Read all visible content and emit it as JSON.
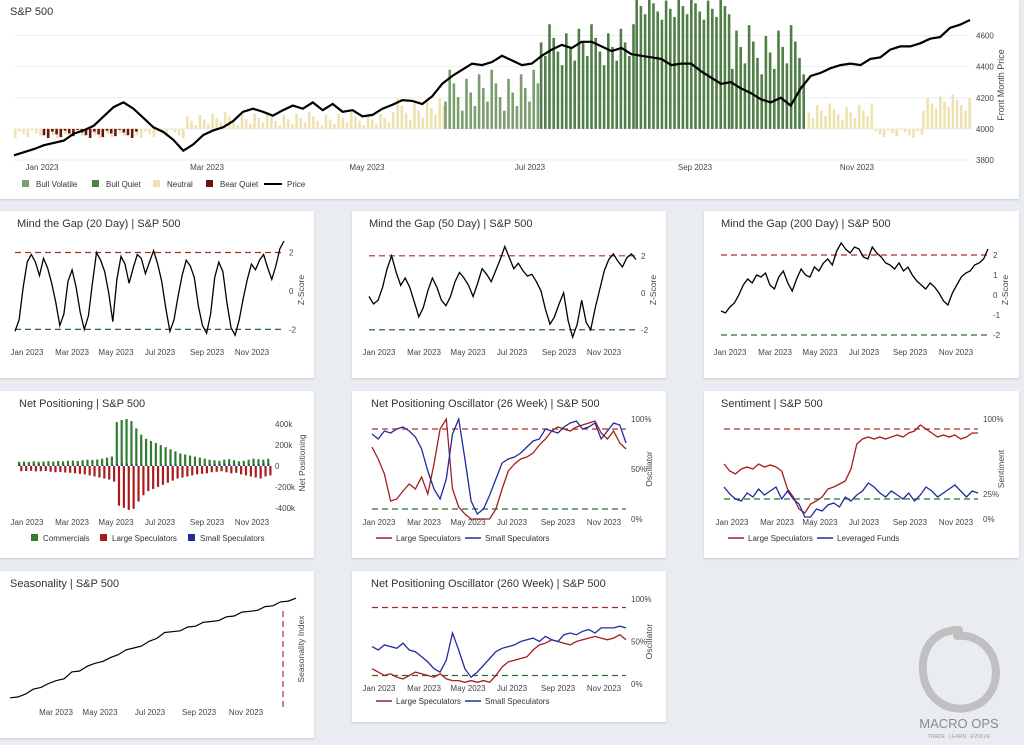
{
  "brand": {
    "name": "MACRO OPS",
    "tagline": "TRADE · LEARN · EVOLVE"
  },
  "colors": {
    "price": "#000000",
    "bull_volatile": "#7a9e6e",
    "bull_quiet": "#4f7f46",
    "neutral": "#ede2b0",
    "bear_quiet": "#6b1414",
    "red_dash": "#b12a2a",
    "green_dash": "#2e6b2e",
    "large_spec": "#a71d1d",
    "small_spec": "#1f2d9c",
    "commercials": "#2e7d32",
    "leveraged": "#1f2d9c"
  },
  "charts": {
    "sp500": {
      "title": "S&P 500"
    },
    "gap20": {
      "title": "Mind the Gap (20 Day) | S&P 500"
    },
    "gap50": {
      "title": "Mind the Gap (50 Day) | S&P 500"
    },
    "gap200": {
      "title": "Mind the Gap (200 Day) | S&P 500"
    },
    "netpos": {
      "title": "Net Positioning | S&P 500"
    },
    "osc26": {
      "title": "Net Positioning Oscillator (26 Week) | S&P 500"
    },
    "sentiment": {
      "title": "Sentiment | S&P 500"
    },
    "seasonality": {
      "title": "Seasonality | S&P 500"
    },
    "osc260": {
      "title": "Net Positioning Oscillator (260 Week) | S&P 500"
    }
  },
  "chart_data": [
    {
      "id": "sp500",
      "type": "bar+line",
      "title": "S&P 500",
      "ylabel": "Front Month Price",
      "ylim": [
        3800,
        4700
      ],
      "yticks": [
        3800,
        4000,
        4200,
        4400,
        4600
      ],
      "xticks": [
        "Jan 2023",
        "Mar 2023",
        "May 2023",
        "Jul 2023",
        "Sep 2023",
        "Nov 2023"
      ],
      "legend": [
        "Bull Volatile",
        "Bull Quiet",
        "Neutral",
        "Bear Quiet",
        "Price"
      ],
      "price": [
        3830,
        3850,
        3870,
        3895,
        3910,
        3925,
        3970,
        3990,
        4020,
        4080,
        4140,
        4170,
        4130,
        4070,
        4010,
        3980,
        3930,
        3860,
        3900,
        3960,
        3990,
        4010,
        4050,
        4110,
        4130,
        4110,
        4085,
        4120,
        4150,
        4130,
        4170,
        4120,
        4160,
        4110,
        4120,
        4080,
        4090,
        4130,
        4155,
        4185,
        4180,
        4160,
        4210,
        4290,
        4340,
        4380,
        4420,
        4410,
        4430,
        4470,
        4440,
        4410,
        4420,
        4470,
        4510,
        4540,
        4520,
        4560,
        4560,
        4530,
        4500,
        4520,
        4480,
        4470,
        4460,
        4450,
        4410,
        4420,
        4420,
        4370,
        4330,
        4290,
        4300,
        4260,
        4230,
        4190,
        4170,
        4200,
        4150,
        4260,
        4340,
        4360,
        4390,
        4410,
        4420,
        4410,
        4450,
        4460,
        4510,
        4530,
        4530,
        4550,
        4580,
        4590,
        4650,
        4670,
        4700
      ],
      "regime": [
        {
          "x0": 0,
          "x1": 18,
          "cat": "neutral",
          "lo": -0.05,
          "hi": 0.0
        },
        {
          "x0": 3,
          "x1": 13,
          "cat": "bear_quiet",
          "lo": -0.05,
          "hi": 0.0
        },
        {
          "x0": 18,
          "x1": 40,
          "cat": "neutral",
          "lo": 0.02,
          "hi": 0.1
        },
        {
          "x0": 40,
          "x1": 45,
          "cat": "neutral",
          "lo": 0.05,
          "hi": 0.18
        },
        {
          "x0": 45,
          "x1": 55,
          "cat": "bull_volatile",
          "lo": 0.1,
          "hi": 0.35
        },
        {
          "x0": 55,
          "x1": 65,
          "cat": "bull_quiet",
          "lo": 0.35,
          "hi": 0.6
        },
        {
          "x0": 65,
          "x1": 75,
          "cat": "bull_quiet",
          "lo": 0.6,
          "hi": 0.75
        },
        {
          "x0": 75,
          "x1": 83,
          "cat": "bull_quiet",
          "lo": 0.3,
          "hi": 0.6
        },
        {
          "x0": 83,
          "x1": 90,
          "cat": "neutral",
          "lo": 0.05,
          "hi": 0.15
        },
        {
          "x0": 90,
          "x1": 95,
          "cat": "neutral",
          "lo": -0.05,
          "hi": 0.0
        },
        {
          "x0": 95,
          "x1": 100,
          "cat": "neutral",
          "lo": 0.1,
          "hi": 0.2
        }
      ]
    },
    {
      "id": "gap20",
      "type": "line",
      "ylabel": "Z-Score",
      "ylim": [
        -2.5,
        2.6
      ],
      "yticks": [
        -2,
        0,
        2
      ],
      "xticks": [
        "Jan 2023",
        "Mar 2023",
        "May 2023",
        "Jul 2023",
        "Sep 2023",
        "Nov 2023"
      ],
      "ref_lines": [
        2,
        -2
      ],
      "values": [
        -2.1,
        -1.5,
        0.2,
        1.5,
        1.9,
        1.5,
        0.8,
        1.7,
        1.2,
        0.4,
        -0.6,
        -1.8,
        -1.2,
        0.5,
        1.1,
        0.2,
        -1.1,
        -2.0,
        -1.3,
        0.4,
        2.0,
        1.6,
        1.0,
        -0.1,
        -1.6,
        0.6,
        1.8,
        1.4,
        0.4,
        1.2,
        1.9,
        1.7,
        0.9,
        1.5,
        2.1,
        1.4,
        0.5,
        -0.9,
        -2.1,
        -1.5,
        -0.3,
        0.8,
        1.6,
        1.3,
        0.7,
        -0.8,
        -1.8,
        -2.2,
        -1.2,
        0.7,
        1.5,
        1.0,
        -0.6,
        -1.9,
        -2.3,
        -1.5,
        -0.4,
        0.6,
        1.4,
        1.1,
        1.6,
        1.9,
        1.2,
        0.6,
        1.3,
        2.2,
        2.6
      ]
    },
    {
      "id": "gap50",
      "type": "line",
      "ylabel": "Z-Score",
      "ylim": [
        -2.5,
        2.8
      ],
      "yticks": [
        -2,
        0,
        2
      ],
      "xticks": [
        "Jan 2023",
        "Mar 2023",
        "May 2023",
        "Jul 2023",
        "Sep 2023",
        "Nov 2023"
      ],
      "ref_lines": [
        2,
        -2
      ],
      "values": [
        -0.2,
        -0.6,
        -0.4,
        0.3,
        1.3,
        2.0,
        1.1,
        0.4,
        0.8,
        0.3,
        -0.5,
        -1.3,
        -0.8,
        0.1,
        0.8,
        0.3,
        -0.4,
        -0.7,
        -0.2,
        0.6,
        1.1,
        0.8,
        0.4,
        -0.2,
        0.5,
        1.3,
        1.0,
        0.6,
        1.2,
        1.8,
        2.5,
        1.9,
        1.3,
        1.6,
        1.2,
        0.9,
        1.0,
        0.6,
        0.1,
        -0.9,
        -1.7,
        -1.3,
        -0.6,
        0.0,
        -1.5,
        -2.4,
        -1.7,
        -0.4,
        -1.6,
        -2.0,
        -0.8,
        0.2,
        1.2,
        1.8,
        2.1,
        1.7,
        1.4,
        1.9,
        2.1,
        1.8
      ]
    },
    {
      "id": "gap200",
      "type": "line",
      "ylabel": "Z-Score",
      "ylim": [
        -2.2,
        2.7
      ],
      "yticks": [
        -2,
        -1,
        0,
        1,
        2
      ],
      "xticks": [
        "Jan 2023",
        "Mar 2023",
        "May 2023",
        "Jul 2023",
        "Sep 2023",
        "Nov 2023"
      ],
      "ref_lines": [
        2,
        -2
      ],
      "values": [
        -0.8,
        -0.9,
        -0.6,
        -0.4,
        0.0,
        0.5,
        0.8,
        0.6,
        1.0,
        0.9,
        1.1,
        0.5,
        0.3,
        0.9,
        1.2,
        0.6,
        0.2,
        0.8,
        1.3,
        1.0,
        0.9,
        1.4,
        1.2,
        1.6,
        1.8,
        1.5,
        2.2,
        2.6,
        2.3,
        2.1,
        2.4,
        2.3,
        1.9,
        1.8,
        2.4,
        2.1,
        1.9,
        1.6,
        1.5,
        1.3,
        1.6,
        1.2,
        1.4,
        1.0,
        0.7,
        0.5,
        0.3,
        0.6,
        0.4,
        0.1,
        -0.3,
        -0.5,
        0.1,
        0.5,
        0.9,
        1.1,
        1.2,
        1.5,
        1.6,
        1.8,
        2.3
      ]
    },
    {
      "id": "netpos",
      "type": "bar",
      "ylabel": "Net Positioning",
      "ylim": [
        -450000,
        450000
      ],
      "yticks": [
        "400k",
        "200k",
        "0",
        "-200k",
        "-400k"
      ],
      "ytick_values": [
        400000,
        200000,
        0,
        -200000,
        -400000
      ],
      "xticks": [
        "Jan 2023",
        "Mar 2023",
        "May 2023",
        "Jul 2023",
        "Sep 2023",
        "Nov 2023"
      ],
      "legend": [
        "Commercials",
        "Large Speculators",
        "Small Speculators"
      ],
      "commercials": [
        40000,
        42000,
        38000,
        45000,
        40000,
        43000,
        46000,
        42000,
        48000,
        45000,
        50000,
        52000,
        48000,
        55000,
        60000,
        58000,
        62000,
        70000,
        80000,
        90000,
        420000,
        440000,
        450000,
        430000,
        360000,
        300000,
        260000,
        240000,
        220000,
        200000,
        180000,
        160000,
        140000,
        120000,
        110000,
        100000,
        90000,
        80000,
        70000,
        60000,
        55000,
        50000,
        60000,
        65000,
        55000,
        45000,
        50000,
        60000,
        70000,
        65000,
        60000,
        70000
      ],
      "large_spec": [
        -50000,
        -48000,
        -46000,
        -52000,
        -50000,
        -48000,
        -55000,
        -60000,
        -58000,
        -62000,
        -65000,
        -70000,
        -75000,
        -80000,
        -90000,
        -100000,
        -110000,
        -120000,
        -130000,
        -150000,
        -380000,
        -400000,
        -420000,
        -410000,
        -340000,
        -280000,
        -240000,
        -220000,
        -200000,
        -180000,
        -160000,
        -140000,
        -120000,
        -110000,
        -100000,
        -90000,
        -80000,
        -75000,
        -70000,
        -60000,
        -55000,
        -50000,
        -60000,
        -70000,
        -65000,
        -80000,
        -90000,
        -100000,
        -110000,
        -120000,
        -100000,
        -90000
      ],
      "small_spec": [
        15000,
        12000,
        10000,
        14000,
        16000,
        12000,
        10000,
        8000,
        12000,
        14000,
        10000,
        12000,
        15000,
        10000,
        8000,
        6000,
        10000,
        12000,
        14000,
        15000,
        20000,
        25000,
        20000,
        18000,
        15000,
        12000,
        10000,
        8000,
        6000,
        10000,
        12000,
        14000,
        16000,
        12000,
        10000,
        8000,
        6000,
        10000,
        12000,
        15000,
        18000,
        20000,
        22000,
        18000,
        15000,
        12000,
        10000,
        14000,
        16000,
        20000,
        25000,
        22000
      ]
    },
    {
      "id": "osc26",
      "type": "line",
      "ylabel": "Oscillator",
      "ylim": [
        0,
        100
      ],
      "yticks": [
        "0%",
        "50%",
        "100%"
      ],
      "ref_lines": [
        90,
        10
      ],
      "xticks": [
        "Jan 2023",
        "Mar 2023",
        "May 2023",
        "Jul 2023",
        "Sep 2023",
        "Nov 2023"
      ],
      "legend": [
        "Large Speculators",
        "Small Speculators"
      ],
      "series": [
        {
          "name": "Large Speculators",
          "values": [
            72,
            60,
            45,
            18,
            20,
            28,
            35,
            30,
            42,
            25,
            55,
            90,
            100,
            30,
            12,
            5,
            0,
            0,
            0,
            0,
            10,
            30,
            48,
            55,
            60,
            62,
            66,
            74,
            80,
            88,
            92,
            90,
            88,
            92,
            94,
            96,
            98,
            86,
            80,
            88,
            76,
            70
          ]
        },
        {
          "name": "Small Speculators",
          "values": [
            85,
            80,
            88,
            86,
            90,
            92,
            88,
            82,
            70,
            48,
            30,
            20,
            40,
            85,
            100,
            60,
            18,
            5,
            10,
            24,
            40,
            56,
            60,
            62,
            66,
            72,
            78,
            80,
            90,
            88,
            86,
            92,
            96,
            98,
            90,
            92,
            96,
            80,
            88,
            96,
            94,
            76
          ]
        }
      ]
    },
    {
      "id": "sentiment",
      "type": "line",
      "ylabel": "Sentiment",
      "ylim": [
        0,
        100
      ],
      "yticks": [
        "0%",
        "25%",
        "100%"
      ],
      "ytick_values": [
        0,
        25,
        100
      ],
      "ref_lines": [
        90,
        20
      ],
      "xticks": [
        "Jan 2023",
        "Mar 2023",
        "May 2023",
        "Jul 2023",
        "Sep 2023",
        "Nov 2023"
      ],
      "legend": [
        "Large Speculators",
        "Leveraged Funds"
      ],
      "series": [
        {
          "name": "Large Speculators",
          "values": [
            55,
            48,
            45,
            50,
            52,
            50,
            55,
            52,
            54,
            52,
            48,
            30,
            22,
            10,
            6,
            15,
            18,
            22,
            30,
            32,
            35,
            38,
            50,
            75,
            80,
            82,
            80,
            82,
            80,
            82,
            84,
            82,
            86,
            88,
            94,
            90,
            86,
            82,
            84,
            82,
            84,
            80,
            82,
            86,
            86
          ]
        },
        {
          "name": "Leveraged Funds",
          "values": [
            32,
            25,
            20,
            18,
            26,
            22,
            30,
            24,
            28,
            32,
            20,
            28,
            20,
            15,
            2,
            2,
            10,
            8,
            14,
            16,
            12,
            22,
            18,
            24,
            28,
            36,
            32,
            26,
            22,
            28,
            24,
            20,
            26,
            18,
            24,
            32,
            28,
            22,
            26,
            30,
            34,
            28,
            22,
            28,
            26
          ]
        }
      ]
    },
    {
      "id": "seasonality",
      "type": "line",
      "ylabel": "Seasonality Index",
      "xticks": [
        "Mar 2023",
        "May 2023",
        "Jul 2023",
        "Sep 2023",
        "Nov 2023"
      ],
      "values": [
        0,
        2,
        6,
        9,
        12,
        14,
        18,
        21,
        26,
        28,
        31,
        35,
        38,
        40,
        44,
        47,
        50,
        53,
        56,
        60,
        64,
        66,
        68,
        70,
        72,
        74,
        76,
        78,
        80,
        82,
        84,
        86,
        88,
        90,
        92,
        94,
        96,
        100
      ]
    },
    {
      "id": "osc260",
      "type": "line",
      "ylabel": "Oscillator",
      "ylim": [
        0,
        100
      ],
      "yticks": [
        "0%",
        "50%",
        "100%"
      ],
      "ref_lines": [
        90,
        10
      ],
      "xticks": [
        "Jan 2023",
        "Mar 2023",
        "May 2023",
        "Jul 2023",
        "Sep 2023",
        "Nov 2023"
      ],
      "legend": [
        "Large Speculators",
        "Small Speculators"
      ],
      "series": [
        {
          "name": "Large Speculators",
          "values": [
            18,
            14,
            10,
            12,
            8,
            6,
            10,
            14,
            12,
            10,
            8,
            12,
            6,
            4,
            4,
            2,
            4,
            2,
            4,
            2,
            10,
            20,
            26,
            28,
            30,
            32,
            40,
            46,
            48,
            52,
            50,
            48,
            46,
            50,
            52,
            54,
            56,
            54,
            52,
            54,
            58,
            52
          ]
        },
        {
          "name": "Small Speculators",
          "values": [
            44,
            40,
            46,
            44,
            42,
            48,
            40,
            38,
            32,
            26,
            18,
            14,
            28,
            60,
            40,
            18,
            8,
            14,
            22,
            30,
            38,
            42,
            44,
            46,
            50,
            52,
            54,
            50,
            56,
            52,
            50,
            58,
            60,
            58,
            62,
            64,
            60,
            66,
            66,
            66,
            68,
            66
          ]
        }
      ]
    }
  ]
}
